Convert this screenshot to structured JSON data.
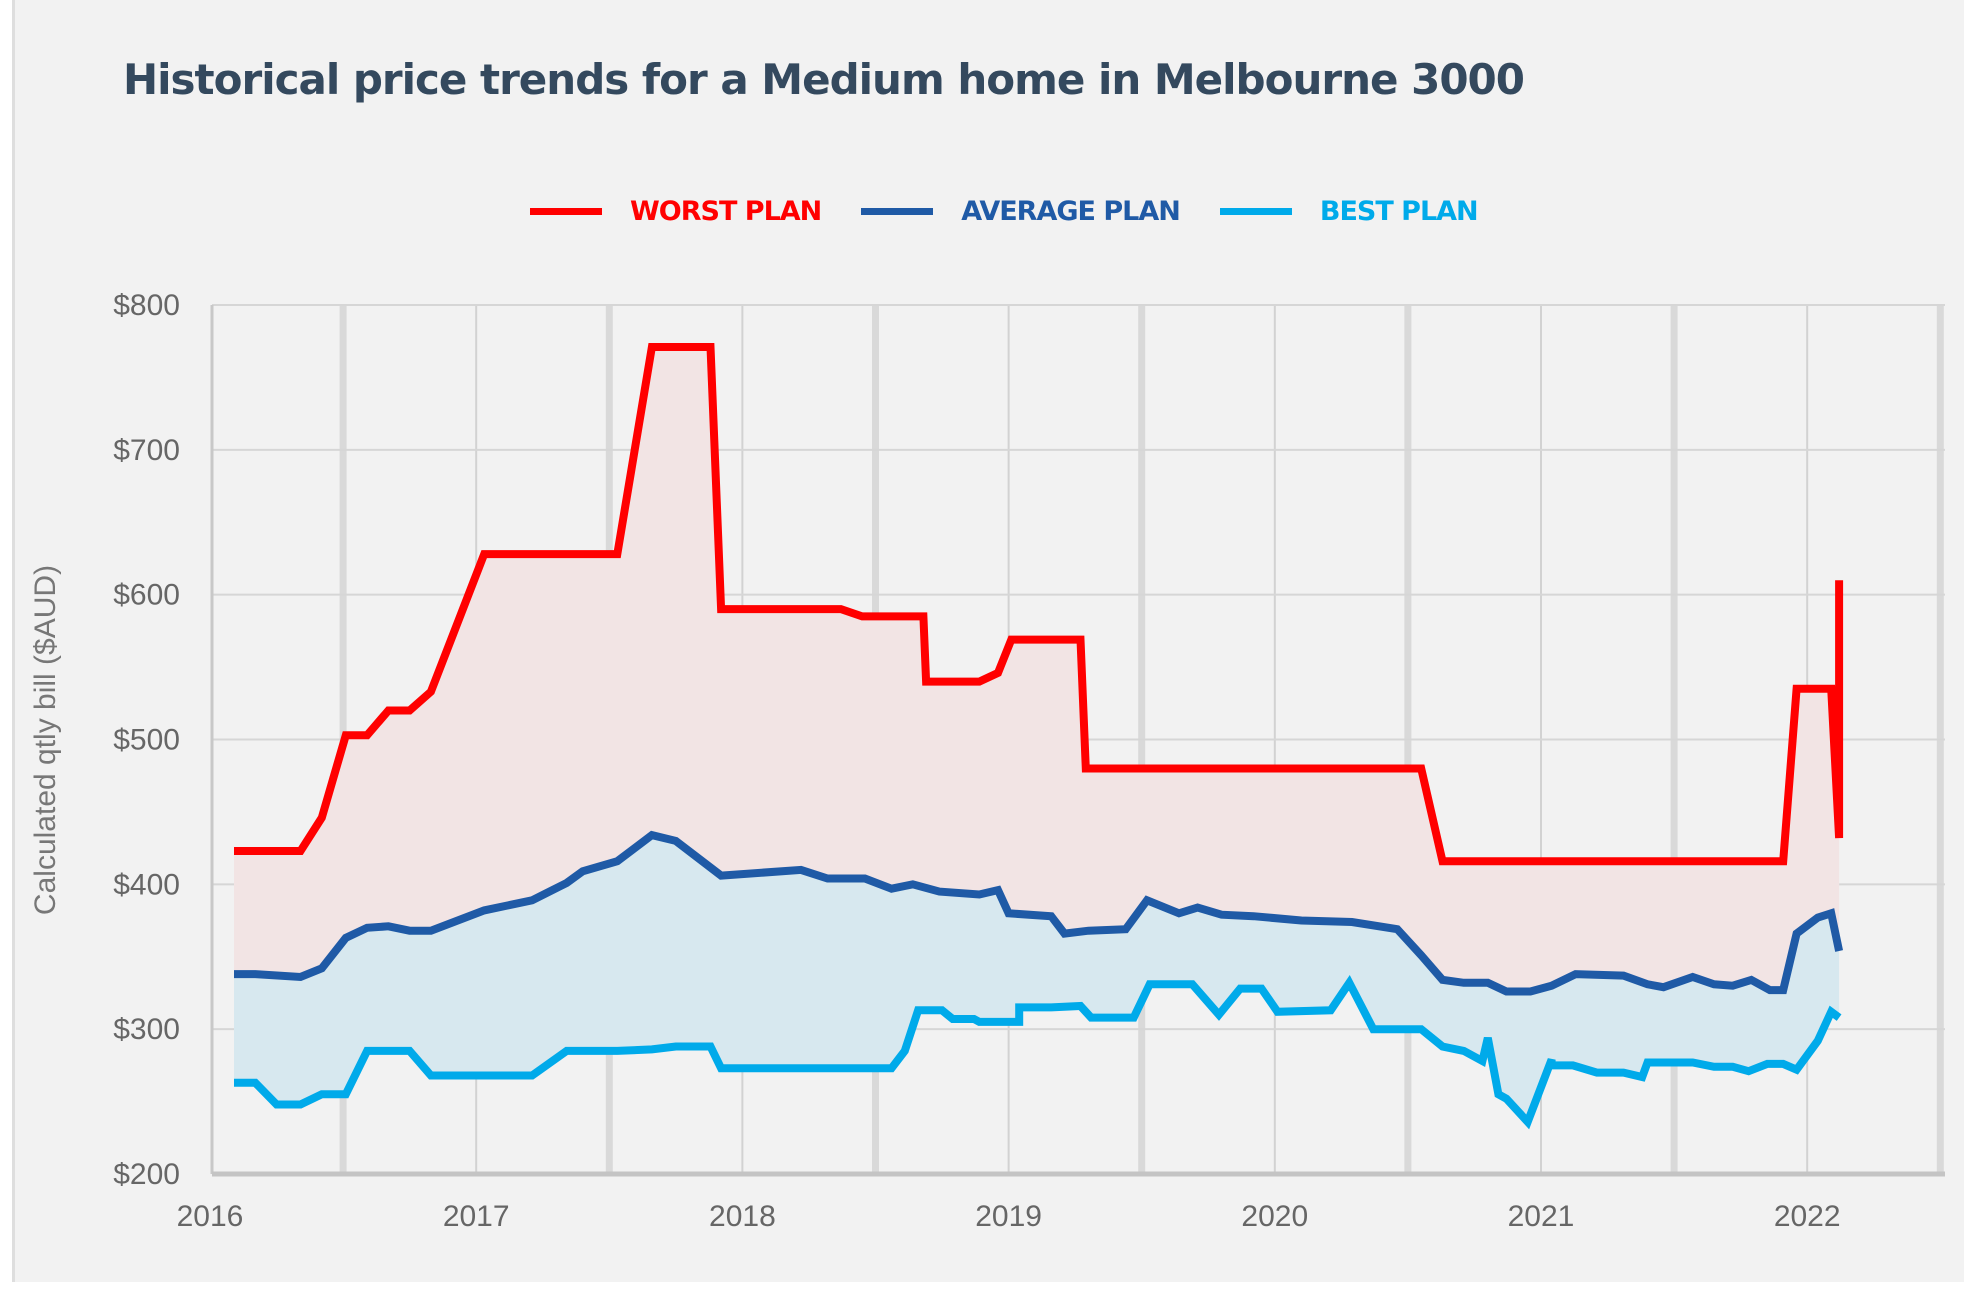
{
  "chart_data": {
    "type": "line",
    "title": "Historical price trends for a Medium home in Melbourne 3000",
    "xlabel": "",
    "ylabel": "Calculated qtly bill ($AUD)",
    "xlim": [
      2016,
      2022.5
    ],
    "ylim": [
      200,
      800
    ],
    "x_ticks": [
      "2016",
      "2017",
      "2018",
      "2019",
      "2020",
      "2021",
      "2022"
    ],
    "y_ticks": [
      "$200",
      "$300",
      "$400",
      "$500",
      "$600",
      "$700",
      "$800"
    ],
    "grid": true,
    "legend_position": "top-center",
    "series": [
      {
        "name": "WORST PLAN",
        "color": "#ff0000",
        "fill": "#f2e4e4",
        "points": [
          [
            2016.09,
            423
          ],
          [
            2016.34,
            423
          ],
          [
            2016.42,
            446
          ],
          [
            2016.51,
            503
          ],
          [
            2016.59,
            503
          ],
          [
            2016.67,
            520
          ],
          [
            2016.75,
            520
          ],
          [
            2016.83,
            533
          ],
          [
            2017.03,
            628
          ],
          [
            2017.53,
            628
          ],
          [
            2017.66,
            771
          ],
          [
            2017.88,
            771
          ],
          [
            2017.92,
            590
          ],
          [
            2018.37,
            590
          ],
          [
            2018.45,
            585
          ],
          [
            2018.68,
            585
          ],
          [
            2018.69,
            540
          ],
          [
            2018.89,
            540
          ],
          [
            2018.96,
            546
          ],
          [
            2019.01,
            569
          ],
          [
            2019.27,
            569
          ],
          [
            2019.29,
            480
          ],
          [
            2020.55,
            480
          ],
          [
            2020.63,
            416
          ],
          [
            2021.91,
            416
          ],
          [
            2021.96,
            535
          ],
          [
            2022.09,
            535
          ],
          [
            2022.12,
            432
          ],
          [
            2022.12,
            610
          ]
        ]
      },
      {
        "name": "AVERAGE PLAN",
        "color": "#1f5aa6",
        "fill": "#d7e8ef",
        "points": [
          [
            2016.09,
            338
          ],
          [
            2016.17,
            338
          ],
          [
            2016.34,
            336
          ],
          [
            2016.42,
            342
          ],
          [
            2016.51,
            363
          ],
          [
            2016.59,
            370
          ],
          [
            2016.67,
            371
          ],
          [
            2016.75,
            368
          ],
          [
            2016.83,
            368
          ],
          [
            2017.03,
            382
          ],
          [
            2017.21,
            389
          ],
          [
            2017.34,
            401
          ],
          [
            2017.4,
            409
          ],
          [
            2017.53,
            416
          ],
          [
            2017.66,
            434
          ],
          [
            2017.75,
            430
          ],
          [
            2017.92,
            406
          ],
          [
            2018.22,
            410
          ],
          [
            2018.32,
            404
          ],
          [
            2018.46,
            404
          ],
          [
            2018.56,
            397
          ],
          [
            2018.64,
            400
          ],
          [
            2018.74,
            395
          ],
          [
            2018.89,
            393
          ],
          [
            2018.96,
            396
          ],
          [
            2019.0,
            380
          ],
          [
            2019.16,
            378
          ],
          [
            2019.21,
            366
          ],
          [
            2019.3,
            368
          ],
          [
            2019.44,
            369
          ],
          [
            2019.52,
            389
          ],
          [
            2019.64,
            380
          ],
          [
            2019.71,
            384
          ],
          [
            2019.8,
            379
          ],
          [
            2019.92,
            378
          ],
          [
            2020.1,
            375
          ],
          [
            2020.29,
            374
          ],
          [
            2020.46,
            369
          ],
          [
            2020.55,
            351
          ],
          [
            2020.63,
            334
          ],
          [
            2020.71,
            332
          ],
          [
            2020.8,
            332
          ],
          [
            2020.87,
            326
          ],
          [
            2020.96,
            326
          ],
          [
            2021.04,
            330
          ],
          [
            2021.13,
            338
          ],
          [
            2021.31,
            337
          ],
          [
            2021.4,
            331
          ],
          [
            2021.46,
            329
          ],
          [
            2021.57,
            336
          ],
          [
            2021.65,
            331
          ],
          [
            2021.72,
            330
          ],
          [
            2021.79,
            334
          ],
          [
            2021.86,
            327
          ],
          [
            2021.91,
            327
          ],
          [
            2021.96,
            366
          ],
          [
            2022.04,
            377
          ],
          [
            2022.09,
            380
          ],
          [
            2022.12,
            354
          ]
        ]
      },
      {
        "name": "BEST PLAN",
        "color": "#00aaea",
        "points": [
          [
            2016.09,
            263
          ],
          [
            2016.17,
            263
          ],
          [
            2016.25,
            248
          ],
          [
            2016.34,
            248
          ],
          [
            2016.42,
            255
          ],
          [
            2016.51,
            255
          ],
          [
            2016.59,
            285
          ],
          [
            2016.75,
            285
          ],
          [
            2016.83,
            268
          ],
          [
            2017.21,
            268
          ],
          [
            2017.34,
            285
          ],
          [
            2017.53,
            285
          ],
          [
            2017.66,
            286
          ],
          [
            2017.75,
            288
          ],
          [
            2017.88,
            288
          ],
          [
            2017.92,
            273
          ],
          [
            2018.56,
            273
          ],
          [
            2018.61,
            285
          ],
          [
            2018.66,
            313
          ],
          [
            2018.75,
            313
          ],
          [
            2018.79,
            307
          ],
          [
            2018.87,
            307
          ],
          [
            2018.89,
            305
          ],
          [
            2019.04,
            305
          ],
          [
            2019.04,
            315
          ],
          [
            2019.16,
            315
          ],
          [
            2019.27,
            316
          ],
          [
            2019.31,
            308
          ],
          [
            2019.47,
            308
          ],
          [
            2019.53,
            331
          ],
          [
            2019.69,
            331
          ],
          [
            2019.79,
            310
          ],
          [
            2019.87,
            328
          ],
          [
            2019.95,
            328
          ],
          [
            2020.01,
            312
          ],
          [
            2020.21,
            313
          ],
          [
            2020.28,
            332
          ],
          [
            2020.37,
            300
          ],
          [
            2020.55,
            300
          ],
          [
            2020.63,
            288
          ],
          [
            2020.71,
            285
          ],
          [
            2020.78,
            278
          ],
          [
            2020.8,
            294
          ],
          [
            2020.84,
            255
          ],
          [
            2020.87,
            252
          ],
          [
            2020.95,
            236
          ],
          [
            2021.04,
            279
          ],
          [
            2021.04,
            275
          ],
          [
            2021.12,
            275
          ],
          [
            2021.21,
            270
          ],
          [
            2021.31,
            270
          ],
          [
            2021.38,
            267
          ],
          [
            2021.4,
            277
          ],
          [
            2021.57,
            277
          ],
          [
            2021.65,
            274
          ],
          [
            2021.72,
            274
          ],
          [
            2021.78,
            271
          ],
          [
            2021.85,
            276
          ],
          [
            2021.91,
            276
          ],
          [
            2021.96,
            272
          ],
          [
            2022.04,
            292
          ],
          [
            2022.09,
            312
          ],
          [
            2022.12,
            308
          ]
        ]
      }
    ]
  }
}
